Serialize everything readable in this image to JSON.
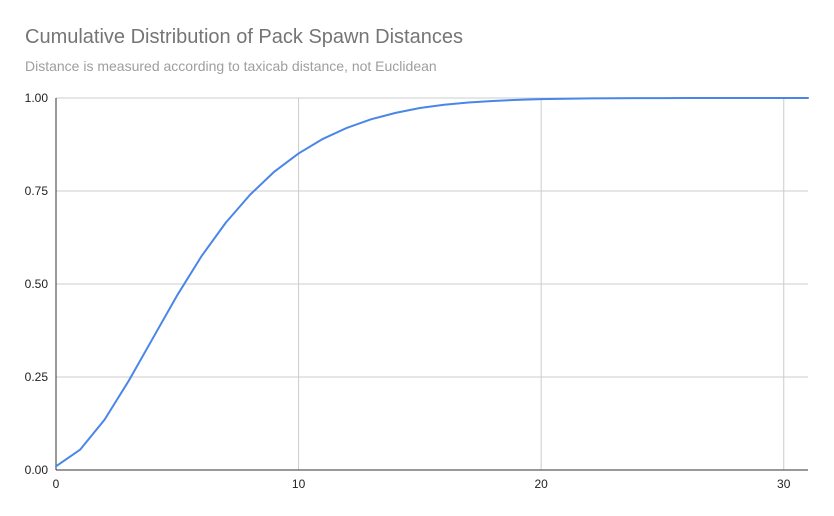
{
  "chart_data": {
    "type": "line",
    "title": "Cumulative Distribution of Pack Spawn Distances",
    "subtitle": "Distance is measured according to taxicab distance, not Euclidean",
    "xlabel": "",
    "ylabel": "",
    "xlim": [
      0,
      31
    ],
    "ylim": [
      0,
      1
    ],
    "x_ticks": [
      "0",
      "10",
      "20",
      "30"
    ],
    "x_tick_values": [
      0,
      10,
      20,
      30
    ],
    "y_ticks": [
      "0.00",
      "0.25",
      "0.50",
      "0.75",
      "1.00"
    ],
    "y_tick_values": [
      0,
      0.25,
      0.5,
      0.75,
      1.0
    ],
    "grid": true,
    "legend": "none",
    "series_color": "#4a86e8",
    "series": [
      {
        "x": [
          0,
          1,
          2,
          3,
          4,
          5,
          6,
          7,
          8,
          9,
          10,
          11,
          12,
          13,
          14,
          15,
          16,
          17,
          18,
          19,
          20,
          21,
          22,
          23,
          24,
          25,
          26,
          27,
          28,
          29,
          30,
          31
        ],
        "values": [
          0.01,
          0.055,
          0.135,
          0.24,
          0.355,
          0.47,
          0.575,
          0.665,
          0.74,
          0.802,
          0.851,
          0.89,
          0.92,
          0.943,
          0.96,
          0.973,
          0.982,
          0.988,
          0.992,
          0.995,
          0.997,
          0.998,
          0.999,
          0.9993,
          0.9996,
          0.9998,
          0.9999,
          1.0,
          1.0,
          1.0,
          1.0,
          1.0
        ]
      }
    ]
  }
}
